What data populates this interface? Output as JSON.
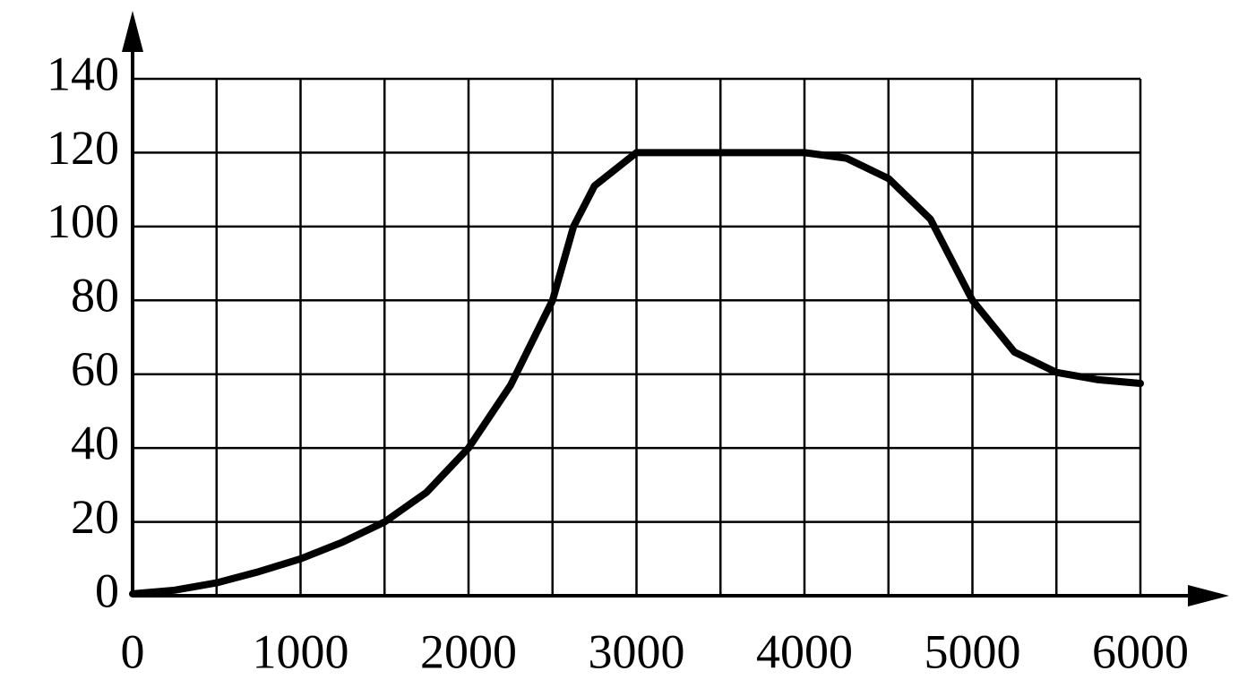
{
  "chart_data": {
    "type": "line",
    "x": [
      0,
      250,
      500,
      750,
      1000,
      1250,
      1500,
      1750,
      2000,
      2250,
      2500,
      2625,
      2750,
      3000,
      3500,
      4000,
      4250,
      4500,
      4750,
      5000,
      5250,
      5500,
      5750,
      6000
    ],
    "values": [
      0.5,
      1.5,
      3.5,
      6.5,
      10,
      14.5,
      20,
      28,
      40,
      57,
      80,
      100,
      111,
      120,
      120,
      120,
      118.5,
      113,
      102,
      80,
      66,
      60.5,
      58.5,
      57.5
    ],
    "color": "#000000",
    "xlim": [
      0,
      6000
    ],
    "ylim": [
      0,
      140
    ],
    "xticks": [
      0,
      1000,
      2000,
      3000,
      4000,
      5000,
      6000
    ],
    "xgrid_minor": [
      500,
      1500,
      2500,
      3500,
      4500,
      5500
    ],
    "yticks": [
      0,
      20,
      40,
      60,
      80,
      100,
      120,
      140
    ],
    "grid": true
  }
}
